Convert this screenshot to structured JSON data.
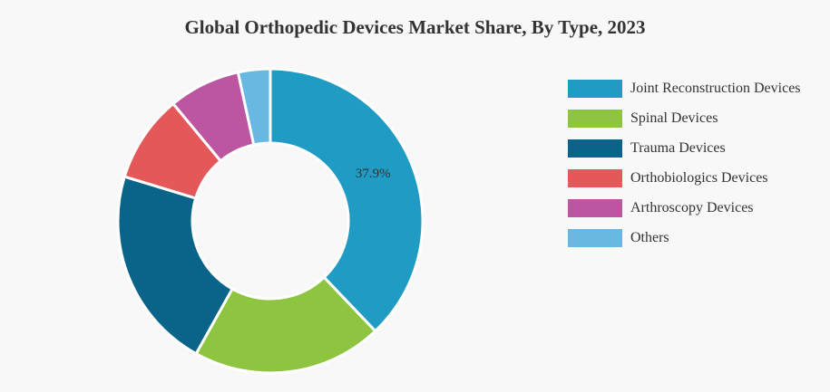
{
  "chart_data": {
    "type": "pie",
    "title": "Global Orthopedic Devices Market Share, By Type, 2023",
    "categories": [
      "Joint Reconstruction Devices",
      "Spinal Devices",
      "Trauma Devices",
      "Orthobiologics Devices",
      "Arthroscopy Devices",
      "Others"
    ],
    "values": [
      37.9,
      20.2,
      21.6,
      9.3,
      7.6,
      3.4
    ],
    "colors": [
      "#1f9bc4",
      "#8dc541",
      "#0a6489",
      "#e5585a",
      "#bd56a1",
      "#69b8e4"
    ],
    "data_labels": [
      "37.9%",
      "",
      "",
      "",
      "",
      ""
    ],
    "legend_position": "right",
    "donut": true
  }
}
